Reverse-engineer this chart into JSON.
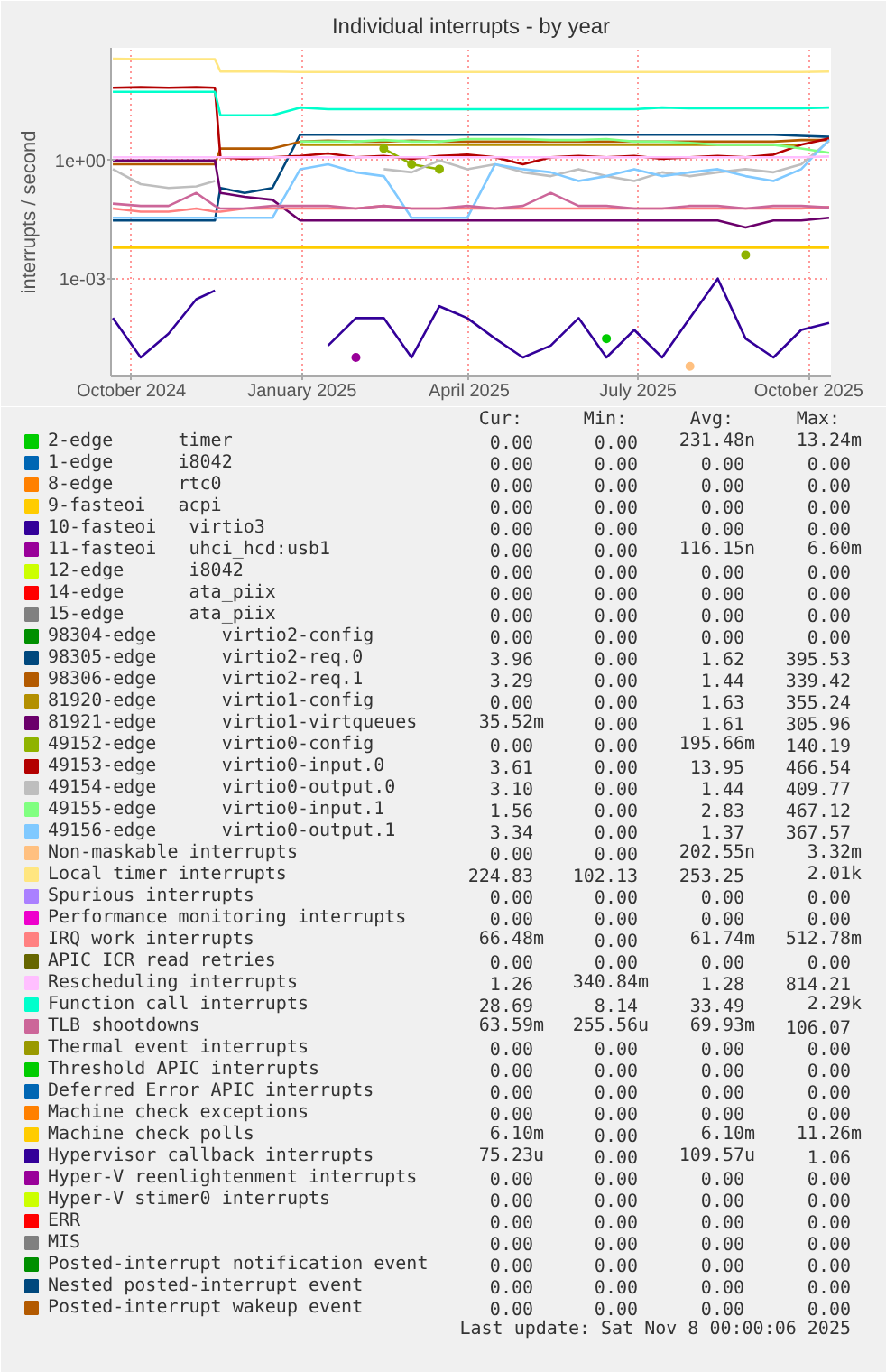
{
  "chart_data": {
    "type": "line",
    "title": "Individual interrupts - by year",
    "ylabel": "interrupts / second",
    "log": true,
    "grid": true,
    "legend": "bottom",
    "ylim": [
      3.3e-06,
      720
    ],
    "yticks": [
      {
        "value": 0.001,
        "label": "1e-03"
      },
      {
        "value": 1,
        "label": "1e+00"
      }
    ],
    "xlim": [
      "2024-09-20",
      "2025-10-13"
    ],
    "xticks": [
      {
        "value": "2024-10-01",
        "label": "October 2024"
      },
      {
        "value": "2025-01-01",
        "label": "January 2025"
      },
      {
        "value": "2025-04-01",
        "label": "April 2025"
      },
      {
        "value": "2025-07-01",
        "label": "July 2025"
      },
      {
        "value": "2025-10-01",
        "label": "October 2025"
      }
    ],
    "x": [
      "2024-09-21",
      "2024-10-06",
      "2024-10-21",
      "2024-11-05",
      "2024-11-15",
      "2024-11-18",
      "2024-12-01",
      "2024-12-16",
      "2024-12-31",
      "2025-01-15",
      "2025-01-30",
      "2025-02-14",
      "2025-03-01",
      "2025-03-16",
      "2025-03-31",
      "2025-04-15",
      "2025-04-30",
      "2025-05-15",
      "2025-05-30",
      "2025-06-14",
      "2025-06-29",
      "2025-07-14",
      "2025-07-29",
      "2025-08-13",
      "2025-08-28",
      "2025-09-12",
      "2025-09-27",
      "2025-10-12"
    ],
    "series": [
      {
        "name": "2-edge      timer",
        "color": "#00cc00",
        "marker": "circle",
        "values": [
          null,
          null,
          null,
          null,
          null,
          null,
          null,
          null,
          null,
          null,
          null,
          null,
          null,
          null,
          null,
          null,
          null,
          null,
          null,
          3e-05,
          null,
          null,
          null,
          null,
          null,
          null,
          null,
          null
        ]
      },
      {
        "name": "1-edge      i8042",
        "color": "#0066b3",
        "values": [
          null,
          null,
          null,
          null,
          null,
          null,
          null,
          null,
          null,
          null,
          null,
          null,
          null,
          null,
          null,
          null,
          null,
          null,
          null,
          null,
          null,
          null,
          null,
          null,
          null,
          null,
          null,
          null
        ]
      },
      {
        "name": "8-edge      rtc0",
        "color": "#ff8000",
        "values": [
          null,
          null,
          null,
          null,
          null,
          null,
          null,
          null,
          null,
          null,
          null,
          null,
          null,
          null,
          null,
          null,
          null,
          null,
          null,
          null,
          null,
          null,
          null,
          null,
          null,
          null,
          null,
          null
        ]
      },
      {
        "name": "9-fasteoi   acpi",
        "color": "#ffcc00",
        "values": [
          null,
          null,
          null,
          null,
          null,
          null,
          null,
          null,
          null,
          null,
          null,
          null,
          null,
          null,
          null,
          null,
          null,
          null,
          null,
          null,
          null,
          null,
          null,
          null,
          null,
          null,
          null,
          null
        ]
      },
      {
        "name": "10-fasteoi   virtio3",
        "color": "#330099",
        "values": [
          null,
          null,
          null,
          null,
          null,
          null,
          null,
          null,
          null,
          null,
          null,
          null,
          null,
          null,
          null,
          null,
          null,
          null,
          null,
          null,
          null,
          null,
          null,
          null,
          null,
          null,
          null,
          null
        ]
      },
      {
        "name": "11-fasteoi   uhci_hcd:usb1",
        "color": "#990099",
        "marker": "circle",
        "values": [
          null,
          null,
          null,
          null,
          null,
          null,
          null,
          null,
          null,
          null,
          1e-05,
          null,
          null,
          null,
          null,
          null,
          null,
          null,
          null,
          null,
          null,
          null,
          null,
          null,
          null,
          null,
          null,
          null
        ]
      },
      {
        "name": "12-edge      i8042",
        "color": "#ccff00",
        "values": [
          null,
          null,
          null,
          null,
          null,
          null,
          null,
          null,
          null,
          null,
          null,
          null,
          null,
          null,
          null,
          null,
          null,
          null,
          null,
          null,
          null,
          null,
          null,
          null,
          null,
          null,
          null,
          null
        ]
      },
      {
        "name": "14-edge      ata_piix",
        "color": "#ff0000",
        "values": [
          null,
          null,
          null,
          null,
          null,
          null,
          null,
          null,
          null,
          null,
          null,
          null,
          null,
          null,
          null,
          null,
          null,
          null,
          null,
          null,
          null,
          null,
          null,
          null,
          null,
          null,
          null,
          null
        ]
      },
      {
        "name": "15-edge      ata_piix",
        "color": "#808080",
        "values": [
          null,
          null,
          null,
          null,
          null,
          null,
          null,
          null,
          null,
          null,
          null,
          null,
          null,
          null,
          null,
          null,
          null,
          null,
          null,
          null,
          null,
          null,
          null,
          null,
          null,
          null,
          null,
          null
        ]
      },
      {
        "name": "98304-edge      virtio2-config",
        "color": "#008f00",
        "values": [
          null,
          null,
          null,
          null,
          null,
          null,
          null,
          null,
          null,
          null,
          null,
          null,
          null,
          null,
          null,
          null,
          null,
          null,
          null,
          null,
          null,
          null,
          null,
          null,
          null,
          null,
          null,
          null
        ]
      },
      {
        "name": "98305-edge      virtio2-req.0",
        "color": "#00487d",
        "values": [
          0.03,
          0.03,
          0.03,
          0.03,
          0.03,
          0.2,
          0.15,
          0.2,
          4.5,
          4.5,
          4.5,
          4.5,
          4.5,
          4.5,
          4.5,
          4.5,
          4.5,
          4.5,
          4.5,
          4.5,
          4.5,
          4.5,
          4.5,
          4.5,
          4.5,
          4.5,
          4.2,
          3.96
        ]
      },
      {
        "name": "98306-edge      virtio2-req.1",
        "color": "#b35a00",
        "values": [
          0.8,
          0.8,
          0.8,
          0.8,
          0.8,
          2,
          2,
          2,
          3,
          3.2,
          3,
          3,
          3.2,
          3,
          3,
          3,
          3,
          3,
          3,
          3,
          3,
          3,
          3,
          3,
          3,
          3,
          3.3,
          3.29
        ]
      },
      {
        "name": "81920-edge      virtio1-config",
        "color": "#b38f00",
        "values": [
          null,
          null,
          null,
          null,
          null,
          null,
          null,
          null,
          2.5,
          2.5,
          2.5,
          2.5,
          2.5,
          2.5,
          2.5,
          2.5,
          2.5,
          2.5,
          2.5,
          2.5,
          2.5,
          2.5,
          2.5,
          2.5,
          2.5,
          2.5,
          2.5,
          null
        ]
      },
      {
        "name": "81921-edge      virtio1-virtqueues",
        "color": "#6b006b",
        "values": [
          1,
          1,
          1,
          1,
          1,
          0.15,
          0.12,
          0.1,
          0.03,
          0.03,
          0.03,
          0.03,
          0.03,
          0.03,
          0.03,
          0.03,
          0.03,
          0.03,
          0.03,
          0.03,
          0.03,
          0.03,
          0.03,
          0.03,
          0.02,
          0.03,
          0.03,
          0.035
        ]
      },
      {
        "name": "49152-edge      virtio0-config",
        "color": "#8fb300",
        "marker": "circle",
        "values": [
          null,
          null,
          null,
          null,
          null,
          null,
          null,
          null,
          null,
          null,
          null,
          2,
          0.8,
          0.6,
          null,
          null,
          null,
          null,
          null,
          null,
          null,
          null,
          null,
          null,
          0.004,
          null,
          null,
          null
        ]
      },
      {
        "name": "49153-edge      virtio0-input.0",
        "color": "#b30000",
        "values": [
          70,
          72,
          70,
          72,
          70,
          1.2,
          1.1,
          1.2,
          1.3,
          1.5,
          1.2,
          1.3,
          1.1,
          1.3,
          1.4,
          1.2,
          0.8,
          1.2,
          1.3,
          1.2,
          1.3,
          1.1,
          1.2,
          1.3,
          1.2,
          1.4,
          2.5,
          3.61
        ]
      },
      {
        "name": "49154-edge      virtio0-output.0",
        "color": "#bebebe",
        "values": [
          0.6,
          0.25,
          0.2,
          0.22,
          0.3,
          null,
          null,
          null,
          null,
          null,
          null,
          0.6,
          0.5,
          1,
          0.6,
          0.8,
          0.5,
          0.4,
          0.6,
          0.4,
          0.3,
          0.5,
          0.4,
          0.5,
          0.6,
          0.5,
          0.8,
          3.1
        ]
      },
      {
        "name": "49155-edge      virtio0-input.1",
        "color": "#80ff80",
        "values": [
          null,
          null,
          null,
          null,
          null,
          null,
          null,
          null,
          3,
          3,
          3,
          3.3,
          3,
          3,
          3.5,
          3.5,
          3.5,
          3.3,
          3.3,
          3.5,
          3,
          3,
          2.8,
          2.5,
          2.5,
          2.5,
          2,
          1.56
        ]
      },
      {
        "name": "49156-edge      virtio0-output.1",
        "color": "#80c9ff",
        "values": [
          0.035,
          0.035,
          0.035,
          0.035,
          0.035,
          0.035,
          0.035,
          0.035,
          0.6,
          0.8,
          0.5,
          0.4,
          0.035,
          0.035,
          0.035,
          0.8,
          0.6,
          0.5,
          0.3,
          0.4,
          0.6,
          0.4,
          0.5,
          0.6,
          0.4,
          0.3,
          0.6,
          3.34
        ]
      },
      {
        "name": "Non-maskable interrupts",
        "color": "#ffc080",
        "marker": "circle",
        "values": [
          null,
          null,
          null,
          null,
          null,
          null,
          null,
          null,
          null,
          null,
          null,
          null,
          null,
          null,
          null,
          null,
          null,
          null,
          null,
          null,
          null,
          null,
          6e-06,
          null,
          null,
          null,
          null,
          null
        ]
      },
      {
        "name": "Local timer interrupts",
        "color": "#ffe680",
        "values": [
          380,
          370,
          370,
          370,
          370,
          180,
          180,
          180,
          175,
          175,
          175,
          175,
          175,
          175,
          175,
          175,
          175,
          175,
          175,
          175,
          175,
          175,
          175,
          175,
          175,
          175,
          175,
          180
        ]
      },
      {
        "name": "Spurious interrupts",
        "color": "#aa80ff",
        "values": [
          null,
          null,
          null,
          null,
          null,
          null,
          null,
          null,
          null,
          null,
          null,
          null,
          null,
          null,
          null,
          null,
          null,
          null,
          null,
          null,
          null,
          null,
          null,
          null,
          null,
          null,
          null,
          null
        ]
      },
      {
        "name": "Performance monitoring interrupts",
        "color": "#ee00cc",
        "values": [
          null,
          null,
          null,
          null,
          null,
          null,
          null,
          null,
          null,
          null,
          null,
          null,
          null,
          null,
          null,
          null,
          null,
          null,
          null,
          null,
          null,
          null,
          null,
          null,
          null,
          null,
          null,
          null
        ]
      },
      {
        "name": "IRQ work interrupts",
        "color": "#ff8080",
        "values": [
          0.06,
          0.05,
          0.05,
          0.06,
          0.05,
          0.05,
          0.06,
          0.06,
          0.06,
          0.06,
          0.06,
          0.07,
          0.06,
          0.06,
          0.06,
          0.06,
          0.06,
          0.06,
          0.06,
          0.06,
          0.06,
          0.06,
          0.06,
          0.06,
          0.06,
          0.06,
          0.06,
          0.066
        ]
      },
      {
        "name": "APIC ICR read retries",
        "color": "#666600",
        "values": [
          null,
          null,
          null,
          null,
          null,
          null,
          null,
          null,
          null,
          null,
          null,
          null,
          null,
          null,
          null,
          null,
          null,
          null,
          null,
          null,
          null,
          null,
          null,
          null,
          null,
          null,
          null,
          null
        ]
      },
      {
        "name": "Rescheduling interrupts",
        "color": "#ffbfff",
        "values": [
          1.2,
          1.2,
          1.2,
          1.2,
          1.2,
          1.2,
          1.2,
          1.2,
          1.2,
          1.2,
          1.2,
          1.2,
          1.2,
          1.2,
          1.2,
          1.2,
          1.2,
          1.2,
          1.2,
          1.2,
          1.2,
          1.2,
          1.2,
          1.2,
          1.2,
          1.2,
          1.2,
          1.26
        ]
      },
      {
        "name": "Function call interrupts",
        "color": "#00ffcc",
        "values": [
          55,
          55,
          55,
          55,
          55,
          14,
          14,
          14,
          22,
          20,
          20,
          20,
          20,
          20,
          20,
          20,
          20,
          20,
          20,
          20,
          20,
          22,
          21,
          21,
          21,
          21,
          21,
          22
        ]
      },
      {
        "name": "TLB shootdowns",
        "color": "#cc6699",
        "values": [
          0.08,
          0.07,
          0.07,
          0.15,
          0.07,
          0.06,
          0.06,
          0.07,
          0.07,
          0.07,
          0.06,
          0.07,
          0.06,
          0.06,
          0.07,
          0.06,
          0.07,
          0.15,
          0.07,
          0.07,
          0.06,
          0.06,
          0.07,
          0.07,
          0.06,
          0.07,
          0.07,
          0.064
        ]
      },
      {
        "name": "Thermal event interrupts",
        "color": "#999900",
        "values": [
          null,
          null,
          null,
          null,
          null,
          null,
          null,
          null,
          null,
          null,
          null,
          null,
          null,
          null,
          null,
          null,
          null,
          null,
          null,
          null,
          null,
          null,
          null,
          null,
          null,
          null,
          null,
          null
        ]
      },
      {
        "name": "Threshold APIC interrupts",
        "color": "#00cc00",
        "values": [
          null,
          null,
          null,
          null,
          null,
          null,
          null,
          null,
          null,
          null,
          null,
          null,
          null,
          null,
          null,
          null,
          null,
          null,
          null,
          null,
          null,
          null,
          null,
          null,
          null,
          null,
          null,
          null
        ]
      },
      {
        "name": "Deferred Error APIC interrupts",
        "color": "#0066b3",
        "values": [
          null,
          null,
          null,
          null,
          null,
          null,
          null,
          null,
          null,
          null,
          null,
          null,
          null,
          null,
          null,
          null,
          null,
          null,
          null,
          null,
          null,
          null,
          null,
          null,
          null,
          null,
          null,
          null
        ]
      },
      {
        "name": "Machine check exceptions",
        "color": "#ff8000",
        "values": [
          null,
          null,
          null,
          null,
          null,
          null,
          null,
          null,
          null,
          null,
          null,
          null,
          null,
          null,
          null,
          null,
          null,
          null,
          null,
          null,
          null,
          null,
          null,
          null,
          null,
          null,
          null,
          null
        ]
      },
      {
        "name": "Machine check polls",
        "color": "#ffcc00",
        "values": [
          0.0061,
          0.0061,
          0.0061,
          0.0061,
          0.0061,
          0.0061,
          0.0061,
          0.0061,
          0.0061,
          0.0061,
          0.0061,
          0.0061,
          0.0061,
          0.0061,
          0.0061,
          0.0061,
          0.0061,
          0.0061,
          0.0061,
          0.0061,
          0.0061,
          0.0061,
          0.0061,
          0.0061,
          0.0061,
          0.0061,
          0.0061,
          0.0061
        ]
      },
      {
        "name": "Hypervisor callback interrupts",
        "color": "#330099",
        "values": [
          0.0001,
          1e-05,
          4e-05,
          0.0003,
          0.0005,
          null,
          null,
          null,
          null,
          2e-05,
          0.0001,
          0.0001,
          1e-05,
          0.0002,
          0.0001,
          3e-05,
          1e-05,
          2e-05,
          0.0001,
          1e-05,
          5e-05,
          1e-05,
          0.0001,
          0.001,
          3e-05,
          1e-05,
          5e-05,
          7.5e-05
        ]
      },
      {
        "name": "Hyper-V reenlightenment interrupts",
        "color": "#990099",
        "values": [
          null,
          null,
          null,
          null,
          null,
          null,
          null,
          null,
          null,
          null,
          null,
          null,
          null,
          null,
          null,
          null,
          null,
          null,
          null,
          null,
          null,
          null,
          null,
          null,
          null,
          null,
          null,
          null
        ]
      },
      {
        "name": "Hyper-V stimer0 interrupts",
        "color": "#ccff00",
        "values": [
          null,
          null,
          null,
          null,
          null,
          null,
          null,
          null,
          null,
          null,
          null,
          null,
          null,
          null,
          null,
          null,
          null,
          null,
          null,
          null,
          null,
          null,
          null,
          null,
          null,
          null,
          null,
          null
        ]
      },
      {
        "name": "ERR",
        "color": "#ff0000",
        "values": [
          null,
          null,
          null,
          null,
          null,
          null,
          null,
          null,
          null,
          null,
          null,
          null,
          null,
          null,
          null,
          null,
          null,
          null,
          null,
          null,
          null,
          null,
          null,
          null,
          null,
          null,
          null,
          null
        ]
      },
      {
        "name": "MIS",
        "color": "#808080",
        "values": [
          null,
          null,
          null,
          null,
          null,
          null,
          null,
          null,
          null,
          null,
          null,
          null,
          null,
          null,
          null,
          null,
          null,
          null,
          null,
          null,
          null,
          null,
          null,
          null,
          null,
          null,
          null,
          null
        ]
      },
      {
        "name": "Posted-interrupt notification event",
        "color": "#008f00",
        "values": [
          null,
          null,
          null,
          null,
          null,
          null,
          null,
          null,
          null,
          null,
          null,
          null,
          null,
          null,
          null,
          null,
          null,
          null,
          null,
          null,
          null,
          null,
          null,
          null,
          null,
          null,
          null,
          null
        ]
      },
      {
        "name": "Nested posted-interrupt event",
        "color": "#00487d",
        "values": [
          null,
          null,
          null,
          null,
          null,
          null,
          null,
          null,
          null,
          null,
          null,
          null,
          null,
          null,
          null,
          null,
          null,
          null,
          null,
          null,
          null,
          null,
          null,
          null,
          null,
          null,
          null,
          null
        ]
      },
      {
        "name": "Posted-interrupt wakeup event",
        "color": "#b35a00",
        "values": [
          null,
          null,
          null,
          null,
          null,
          null,
          null,
          null,
          null,
          null,
          null,
          null,
          null,
          null,
          null,
          null,
          null,
          null,
          null,
          null,
          null,
          null,
          null,
          null,
          null,
          null,
          null,
          null
        ]
      }
    ],
    "annotations": [
      "Cur:",
      "Min:",
      "Avg:",
      "Max:",
      "0.00",
      "0.00",
      "231.48n",
      "13.24m",
      "0.00",
      "0.00",
      "0.00",
      "0.00",
      "0.00",
      "0.00",
      "0.00",
      "0.00",
      "0.00",
      "0.00",
      "0.00",
      "0.00",
      "0.00",
      "0.00",
      "0.00",
      "0.00",
      "0.00",
      "0.00",
      "116.15n",
      "6.60m",
      "0.00",
      "0.00",
      "0.00",
      "0.00",
      "0.00",
      "0.00",
      "0.00",
      "0.00",
      "0.00",
      "0.00",
      "0.00",
      "0.00",
      "0.00",
      "0.00",
      "0.00",
      "0.00",
      "3.96",
      "0.00",
      "1.62",
      "395.53",
      "3.29",
      "0.00",
      "1.44",
      "339.42",
      "0.00",
      "0.00",
      "1.63",
      "355.24",
      "35.52m",
      "0.00",
      "1.61",
      "305.96",
      "0.00",
      "0.00",
      "195.66m",
      "140.19",
      "3.61",
      "0.00",
      "13.95",
      "466.54",
      "3.10",
      "0.00",
      "1.44",
      "409.77",
      "1.56",
      "0.00",
      "2.83",
      "467.12",
      "3.34",
      "0.00",
      "1.37",
      "367.57",
      "0.00",
      "0.00",
      "202.55n",
      "3.32m",
      "224.83",
      "102.13",
      "253.25",
      "2.01k",
      "0.00",
      "0.00",
      "0.00",
      "0.00",
      "0.00",
      "0.00",
      "0.00",
      "0.00",
      "66.48m",
      "0.00",
      "61.74m",
      "512.78m",
      "0.00",
      "0.00",
      "0.00",
      "0.00",
      "1.26",
      "340.84m",
      "1.28",
      "814.21",
      "28.69",
      "8.14",
      "33.49",
      "2.29k",
      "63.59m",
      "255.56u",
      "69.93m",
      "106.07",
      "0.00",
      "0.00",
      "0.00",
      "0.00",
      "0.00",
      "0.00",
      "0.00",
      "0.00",
      "0.00",
      "0.00",
      "0.00",
      "0.00",
      "0.00",
      "0.00",
      "0.00",
      "0.00",
      "6.10m",
      "0.00",
      "6.10m",
      "11.26m",
      "75.23u",
      "0.00",
      "109.57u",
      "1.06",
      "0.00",
      "0.00",
      "0.00",
      "0.00",
      "0.00",
      "0.00",
      "0.00",
      "0.00",
      "0.00",
      "0.00",
      "0.00",
      "0.00",
      "0.00",
      "0.00",
      "0.00",
      "0.00",
      "0.00",
      "0.00",
      "0.00",
      "0.00",
      "0.00",
      "0.00",
      "0.00",
      "0.00",
      "0.00",
      "0.00",
      "0.00",
      "0.00",
      "Last update: Sat Nov  8 00:00:06 2025"
    ]
  }
}
